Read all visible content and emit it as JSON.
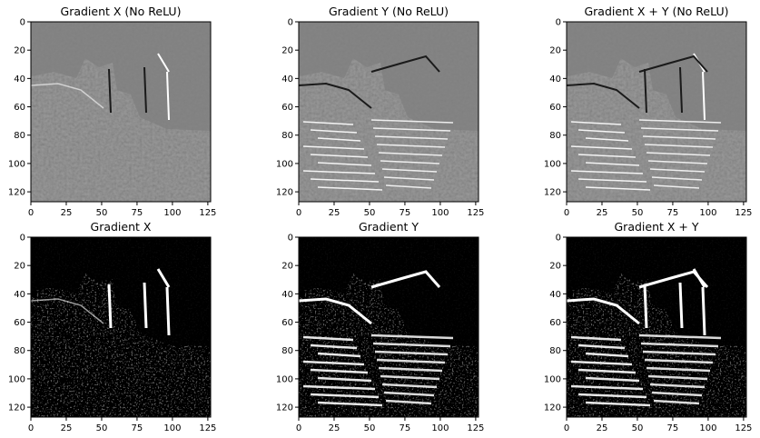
{
  "figure": {
    "panels": [
      {
        "title": "Gradient X (No ReLU)",
        "kind": "signed",
        "direction": "x",
        "xlim": [
          0,
          127
        ],
        "ylim": [
          127,
          0
        ],
        "xticks": [
          "0",
          "25",
          "50",
          "75",
          "100",
          "125"
        ],
        "yticks": [
          "0",
          "20",
          "40",
          "60",
          "80",
          "100",
          "120"
        ]
      },
      {
        "title": "Gradient Y (No ReLU)",
        "kind": "signed",
        "direction": "y",
        "xlim": [
          0,
          127
        ],
        "ylim": [
          127,
          0
        ],
        "xticks": [
          "0",
          "25",
          "50",
          "75",
          "100",
          "125"
        ],
        "yticks": [
          "0",
          "20",
          "40",
          "60",
          "80",
          "100",
          "120"
        ]
      },
      {
        "title": "Gradient X + Y (No ReLU)",
        "kind": "signed",
        "direction": "xy",
        "xlim": [
          0,
          127
        ],
        "ylim": [
          127,
          0
        ],
        "xticks": [
          "0",
          "25",
          "50",
          "75",
          "100",
          "125"
        ],
        "yticks": [
          "0",
          "20",
          "40",
          "60",
          "80",
          "100",
          "120"
        ]
      },
      {
        "title": "Gradient X",
        "kind": "relu",
        "direction": "x",
        "xlim": [
          0,
          127
        ],
        "ylim": [
          127,
          0
        ],
        "xticks": [
          "0",
          "25",
          "50",
          "75",
          "100",
          "125"
        ],
        "yticks": [
          "0",
          "20",
          "40",
          "60",
          "80",
          "100",
          "120"
        ]
      },
      {
        "title": "Gradient Y",
        "kind": "relu",
        "direction": "y",
        "xlim": [
          0,
          127
        ],
        "ylim": [
          127,
          0
        ],
        "xticks": [
          "0",
          "25",
          "50",
          "75",
          "100",
          "125"
        ],
        "yticks": [
          "0",
          "20",
          "40",
          "60",
          "80",
          "100",
          "120"
        ]
      },
      {
        "title": "Gradient X + Y",
        "kind": "relu",
        "direction": "xy",
        "xlim": [
          0,
          127
        ],
        "ylim": [
          127,
          0
        ],
        "xticks": [
          "0",
          "25",
          "50",
          "75",
          "100",
          "125"
        ],
        "yticks": [
          "0",
          "20",
          "40",
          "60",
          "80",
          "100",
          "120"
        ]
      }
    ],
    "colors": {
      "signed_background": "#808080",
      "relu_background": "#000000",
      "edge_bright": "#ffffff",
      "edge_dark": "#1a1a1a"
    }
  }
}
